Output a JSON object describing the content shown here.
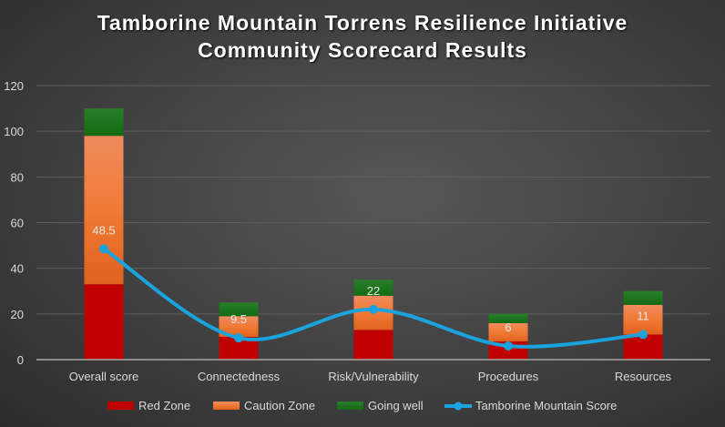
{
  "chart_data": {
    "type": "bar",
    "stacked": true,
    "title_line1": "Tamborine Mountain Torrens Resilience Initiative",
    "title_line2": "Community Scorecard Results",
    "categories": [
      "Overall score",
      "Connectedness",
      "Risk/Vulnerability",
      "Procedures",
      "Resources"
    ],
    "series": [
      {
        "name": "Red Zone",
        "type": "bar",
        "color": "#c00000",
        "values": [
          33,
          10,
          13,
          8,
          11
        ]
      },
      {
        "name": "Caution Zone",
        "type": "bar",
        "color": "#ed7d31",
        "values": [
          65,
          9,
          15,
          8,
          13
        ]
      },
      {
        "name": "Going well",
        "type": "bar",
        "color": "#1e7a1e",
        "values": [
          12,
          6,
          7,
          4,
          6
        ]
      },
      {
        "name": "Tamborine Mountain Score",
        "type": "line",
        "color": "#1aa3dc",
        "values": [
          48.5,
          9.5,
          22,
          6,
          11
        ],
        "data_labels": [
          "48.5",
          "9.5",
          "22",
          "6",
          "11"
        ]
      }
    ],
    "ylim": [
      0,
      120
    ],
    "yticks": [
      "0",
      "20",
      "40",
      "60",
      "80",
      "100",
      "120"
    ],
    "grid": true,
    "legend": "bottom"
  }
}
